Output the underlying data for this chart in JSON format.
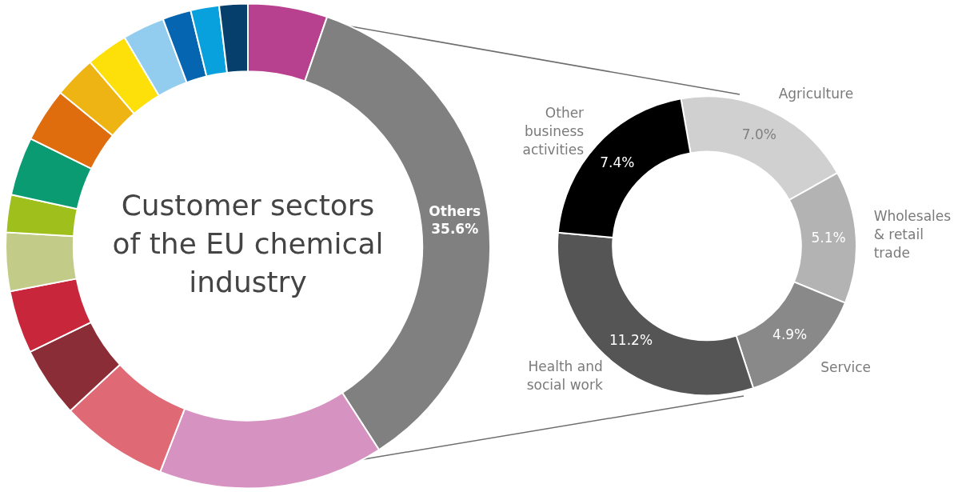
{
  "chart_data": [
    {
      "type": "donut",
      "title": "Customer sectors of the EU chemical industry",
      "categories": [
        null,
        "Others",
        null,
        null,
        null,
        null,
        null,
        null,
        null,
        null,
        null,
        null,
        null,
        null,
        null,
        null
      ],
      "values": [
        5.3,
        35.6,
        15.0,
        7.2,
        4.7,
        4.2,
        3.9,
        2.5,
        3.9,
        3.6,
        2.8,
        2.8,
        2.8,
        1.9,
        1.9,
        1.9
      ],
      "value_labels": [
        null,
        "35.6%",
        null,
        null,
        null,
        null,
        null,
        null,
        null,
        null,
        null,
        null,
        null,
        null,
        null,
        null
      ],
      "colors": [
        "#b8418f",
        "#808080",
        "#d692c1",
        "#df6975",
        "#8b2d36",
        "#c8263b",
        "#c2cc88",
        "#9fbf1d",
        "#0a9b72",
        "#df6d0e",
        "#eeb414",
        "#fde00a",
        "#92cdf0",
        "#0565b0",
        "#08a0dd",
        "#063f6c"
      ]
    },
    {
      "type": "donut",
      "categories": [
        "Agriculture",
        "Wholesales & retail trade",
        "Service",
        "Health and social work",
        "Other business activities"
      ],
      "values": [
        7.0,
        5.1,
        4.9,
        11.2,
        7.4
      ],
      "value_labels": [
        "7.0%",
        "5.1%",
        "4.9%",
        "11.2%",
        "7.4%"
      ],
      "colors": [
        "#d0d0d0",
        "#b3b3b3",
        "#898989",
        "#555555",
        "#000000"
      ]
    }
  ]
}
